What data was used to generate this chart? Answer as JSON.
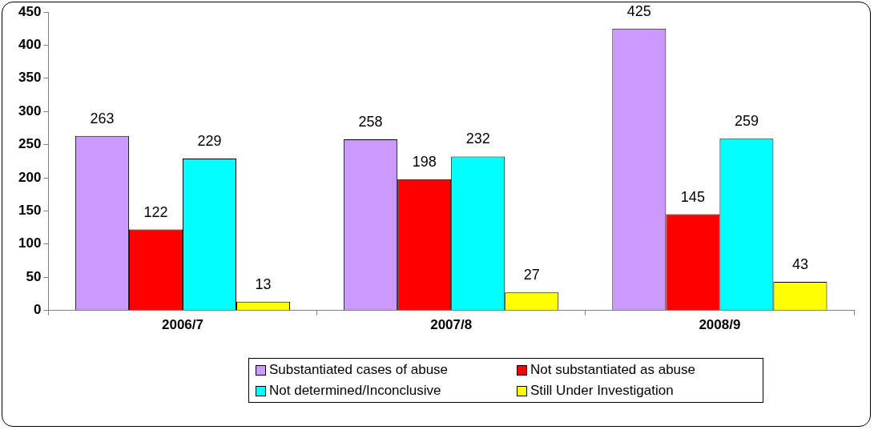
{
  "chart_data": {
    "type": "bar",
    "categories": [
      "2006/7",
      "2007/8",
      "2008/9"
    ],
    "series": [
      {
        "name": "Substantiated cases of abuse",
        "color": "#cc99ff",
        "values": [
          263,
          258,
          425
        ]
      },
      {
        "name": "Not substantiated as abuse",
        "color": "#ff0000",
        "values": [
          122,
          198,
          145
        ]
      },
      {
        "name": "Not determined/Inconclusive",
        "color": "#00ffff",
        "values": [
          229,
          232,
          259
        ]
      },
      {
        "name": "Still Under Investigation",
        "color": "#ffff00",
        "values": [
          13,
          27,
          43
        ]
      }
    ],
    "ylim": [
      0,
      450
    ],
    "yticks": [
      0,
      50,
      100,
      150,
      200,
      250,
      300,
      350,
      400,
      450
    ],
    "grid": false,
    "legend": "bottom",
    "data_labels": true
  }
}
